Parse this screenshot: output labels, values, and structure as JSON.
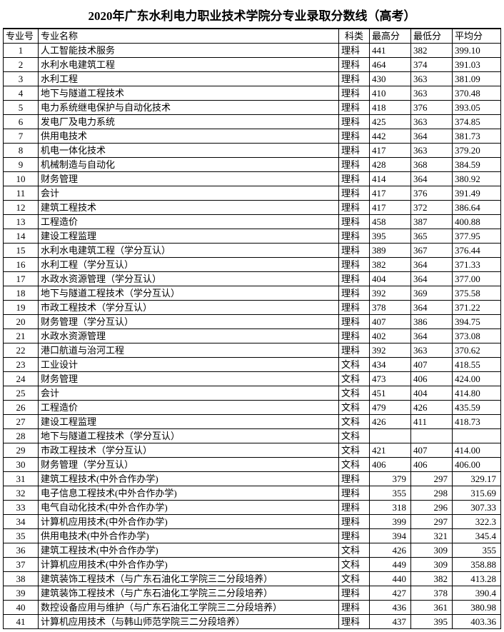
{
  "title": "2020年广东水利电力职业技术学院分专业录取分数线（高考）",
  "headers": {
    "id": "专业号",
    "name": "专业名称",
    "kind": "科类",
    "max": "最高分",
    "min": "最低分",
    "avg": "平均分"
  },
  "style": {
    "background_color": "#ffffff",
    "border_color": "#000000",
    "title_fontsize": 17,
    "cell_fontsize": 13,
    "font_family": "SimSun"
  },
  "rows": [
    {
      "id": "1",
      "name": "人工智能技术服务",
      "kind": "理科",
      "max": "441",
      "min": "382",
      "avg": "399.10",
      "ra": false
    },
    {
      "id": "2",
      "name": "水利水电建筑工程",
      "kind": "理科",
      "max": "464",
      "min": "374",
      "avg": "391.03",
      "ra": false
    },
    {
      "id": "3",
      "name": "水利工程",
      "kind": "理科",
      "max": "430",
      "min": "363",
      "avg": "381.09",
      "ra": false
    },
    {
      "id": "4",
      "name": "地下与隧道工程技术",
      "kind": "理科",
      "max": "410",
      "min": "363",
      "avg": "370.48",
      "ra": false
    },
    {
      "id": "5",
      "name": "电力系统继电保护与自动化技术",
      "kind": "理科",
      "max": "418",
      "min": "376",
      "avg": "393.05",
      "ra": false
    },
    {
      "id": "6",
      "name": "发电厂及电力系统",
      "kind": "理科",
      "max": "425",
      "min": "363",
      "avg": "374.85",
      "ra": false
    },
    {
      "id": "7",
      "name": "供用电技术",
      "kind": "理科",
      "max": "442",
      "min": "364",
      "avg": "381.73",
      "ra": false
    },
    {
      "id": "8",
      "name": "机电一体化技术",
      "kind": "理科",
      "max": "417",
      "min": "363",
      "avg": "379.20",
      "ra": false
    },
    {
      "id": "9",
      "name": "机械制造与自动化",
      "kind": "理科",
      "max": "428",
      "min": "368",
      "avg": "384.59",
      "ra": false
    },
    {
      "id": "10",
      "name": "财务管理",
      "kind": "理科",
      "max": "414",
      "min": "364",
      "avg": "380.92",
      "ra": false
    },
    {
      "id": "11",
      "name": "会计",
      "kind": "理科",
      "max": "417",
      "min": "376",
      "avg": "391.49",
      "ra": false
    },
    {
      "id": "12",
      "name": "建筑工程技术",
      "kind": "理科",
      "max": "417",
      "min": "372",
      "avg": "386.64",
      "ra": false
    },
    {
      "id": "13",
      "name": "工程造价",
      "kind": "理科",
      "max": "458",
      "min": "387",
      "avg": "400.88",
      "ra": false
    },
    {
      "id": "14",
      "name": "建设工程监理",
      "kind": "理科",
      "max": "395",
      "min": "365",
      "avg": "377.95",
      "ra": false
    },
    {
      "id": "15",
      "name": "水利水电建筑工程（学分互认）",
      "kind": "理科",
      "max": "389",
      "min": "367",
      "avg": "376.44",
      "ra": false
    },
    {
      "id": "16",
      "name": "水利工程（学分互认）",
      "kind": "理科",
      "max": "382",
      "min": "364",
      "avg": "371.33",
      "ra": false
    },
    {
      "id": "17",
      "name": "水政水资源管理（学分互认）",
      "kind": "理科",
      "max": "404",
      "min": "364",
      "avg": "377.00",
      "ra": false
    },
    {
      "id": "18",
      "name": "地下与隧道工程技术（学分互认）",
      "kind": "理科",
      "max": "392",
      "min": "369",
      "avg": "375.58",
      "ra": false
    },
    {
      "id": "19",
      "name": "市政工程技术（学分互认）",
      "kind": "理科",
      "max": "378",
      "min": "364",
      "avg": "371.22",
      "ra": false
    },
    {
      "id": "20",
      "name": "财务管理（学分互认）",
      "kind": "理科",
      "max": "407",
      "min": "386",
      "avg": "394.75",
      "ra": false
    },
    {
      "id": "21",
      "name": "水政水资源管理",
      "kind": "理科",
      "max": "402",
      "min": "364",
      "avg": "373.08",
      "ra": false
    },
    {
      "id": "22",
      "name": "港口航道与治河工程",
      "kind": "理科",
      "max": "392",
      "min": "363",
      "avg": "370.62",
      "ra": false
    },
    {
      "id": "23",
      "name": "工业设计",
      "kind": "文科",
      "max": "434",
      "min": "407",
      "avg": "418.55",
      "ra": false
    },
    {
      "id": "24",
      "name": "财务管理",
      "kind": "文科",
      "max": "473",
      "min": "406",
      "avg": "424.00",
      "ra": false
    },
    {
      "id": "25",
      "name": "会计",
      "kind": "文科",
      "max": "451",
      "min": "404",
      "avg": "414.80",
      "ra": false
    },
    {
      "id": "26",
      "name": "工程造价",
      "kind": "文科",
      "max": "479",
      "min": "426",
      "avg": "435.59",
      "ra": false
    },
    {
      "id": "27",
      "name": "建设工程监理",
      "kind": "文科",
      "max": "426",
      "min": "411",
      "avg": "418.73",
      "ra": false
    },
    {
      "id": "28",
      "name": "地下与隧道工程技术（学分互认）",
      "kind": "文科",
      "max": "",
      "min": "",
      "avg": "",
      "ra": false
    },
    {
      "id": "29",
      "name": "市政工程技术（学分互认）",
      "kind": "文科",
      "max": "421",
      "min": "407",
      "avg": "414.00",
      "ra": false
    },
    {
      "id": "30",
      "name": "财务管理（学分互认）",
      "kind": "文科",
      "max": "406",
      "min": "406",
      "avg": "406.00",
      "ra": false
    },
    {
      "id": "31",
      "name": "建筑工程技术(中外合作办学)",
      "kind": "理科",
      "max": "379",
      "min": "297",
      "avg": "329.17",
      "ra": true
    },
    {
      "id": "32",
      "name": "电子信息工程技术(中外合作办学)",
      "kind": "理科",
      "max": "355",
      "min": "298",
      "avg": "315.69",
      "ra": true
    },
    {
      "id": "33",
      "name": "电气自动化技术(中外合作办学)",
      "kind": "理科",
      "max": "318",
      "min": "296",
      "avg": "307.33",
      "ra": true
    },
    {
      "id": "34",
      "name": "计算机应用技术(中外合作办学)",
      "kind": "理科",
      "max": "399",
      "min": "297",
      "avg": "322.3",
      "ra": true
    },
    {
      "id": "35",
      "name": "供用电技术(中外合作办学)",
      "kind": "理科",
      "max": "394",
      "min": "321",
      "avg": "345.4",
      "ra": true
    },
    {
      "id": "36",
      "name": "建筑工程技术(中外合作办学)",
      "kind": "文科",
      "max": "426",
      "min": "309",
      "avg": "355",
      "ra": true
    },
    {
      "id": "37",
      "name": "计算机应用技术(中外合作办学)",
      "kind": "文科",
      "max": "449",
      "min": "309",
      "avg": "358.88",
      "ra": true
    },
    {
      "id": "38",
      "name": "建筑装饰工程技术（与广东石油化工学院三二分段培养）",
      "kind": "文科",
      "max": "440",
      "min": "382",
      "avg": "413.28",
      "ra": true
    },
    {
      "id": "39",
      "name": "建筑装饰工程技术（与广东石油化工学院三二分段培养）",
      "kind": "理科",
      "max": "427",
      "min": "378",
      "avg": "390.4",
      "ra": true
    },
    {
      "id": "40",
      "name": "数控设备应用与维护（与广东石油化工学院三二分段培养）",
      "kind": "理科",
      "max": "436",
      "min": "361",
      "avg": "380.98",
      "ra": true
    },
    {
      "id": "41",
      "name": "计算机应用技术（与韩山师范学院三二分段培养）",
      "kind": "理科",
      "max": "437",
      "min": "395",
      "avg": "403.36",
      "ra": true
    }
  ]
}
